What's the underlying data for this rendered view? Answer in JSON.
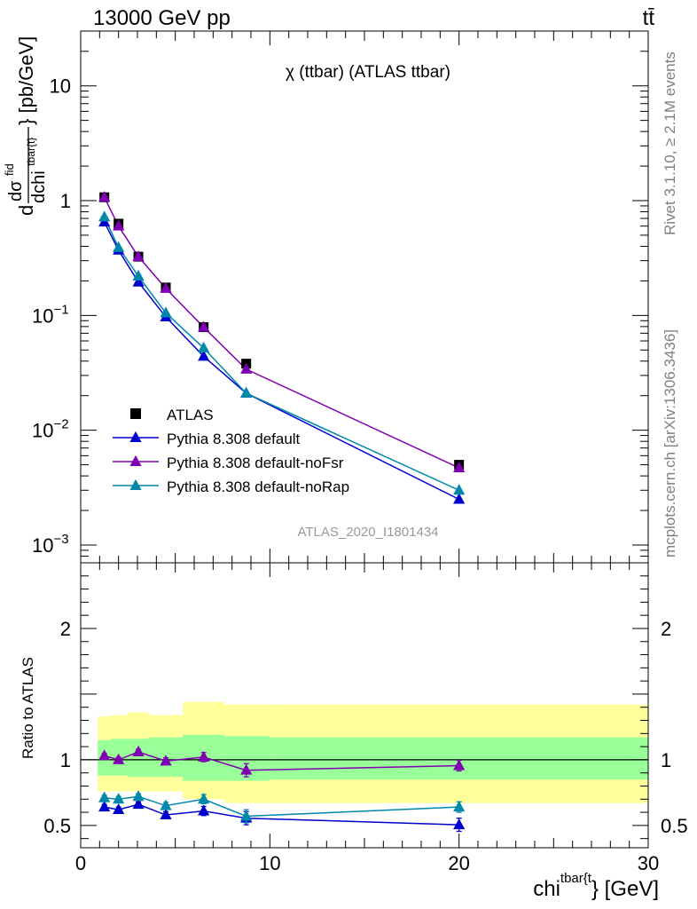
{
  "header": {
    "energy_label": "13000 GeV pp",
    "process_label": "tt̄"
  },
  "side_text": {
    "rivet": "Rivet 3.1.10, ≥ 2.1M events",
    "mcplots": "mcplots.cern.ch [arXiv:1306.3436]"
  },
  "chart_data": [
    {
      "type": "scatter",
      "title": "χ (ttbar) (ATLAS ttbar)",
      "watermark": "ATLAS_2020_I1801434",
      "ylabel": {
        "main": "d",
        "num": "dσ",
        "num_sup": "fid",
        "den": "dchi",
        "den_sup": "tbar{t}",
        "unit": "} [pb/GeV]"
      },
      "yscale": "log",
      "ylim": [
        0.0007,
        30
      ],
      "xlim": [
        0,
        30
      ],
      "yticks": [
        {
          "value": 10,
          "label": "10"
        },
        {
          "value": 1,
          "label": "1"
        },
        {
          "value": 0.1,
          "label": "10",
          "sup": "−1"
        },
        {
          "value": 0.01,
          "label": "10",
          "sup": "−2"
        },
        {
          "value": 0.001,
          "label": "10",
          "sup": "−3"
        }
      ],
      "x": [
        1.25,
        2.0,
        3.05,
        4.5,
        6.5,
        8.75,
        20.0
      ],
      "legend_position": "bottom-left",
      "series": [
        {
          "name": "ATLAS",
          "marker": "square",
          "color": "#000000",
          "values": [
            1.07,
            0.63,
            0.325,
            0.175,
            0.079,
            0.038,
            0.005
          ]
        },
        {
          "name": "Pythia 8.308 default",
          "marker": "triangle",
          "color": "#0000cc",
          "values": [
            0.65,
            0.37,
            0.195,
            0.097,
            0.044,
            0.021,
            0.0025
          ]
        },
        {
          "name": "Pythia 8.308 default-noFsr",
          "marker": "triangle",
          "color": "#7f00b2",
          "values": [
            1.07,
            0.6,
            0.325,
            0.172,
            0.079,
            0.034,
            0.0047
          ]
        },
        {
          "name": "Pythia 8.308 default-noRap",
          "marker": "triangle",
          "color": "#0088aa",
          "values": [
            0.72,
            0.39,
            0.22,
            0.105,
            0.052,
            0.021,
            0.003
          ]
        }
      ]
    },
    {
      "type": "scatter",
      "ylabel": "Ratio to ATLAS",
      "xlabel": {
        "main": "chi",
        "sup": "tbar{t",
        "unit": "} [GeV]"
      },
      "xlim": [
        0,
        30
      ],
      "ylim": [
        0.33,
        2.5
      ],
      "yticks": [
        {
          "value": 2,
          "label": "2"
        },
        {
          "value": 1,
          "label": "1"
        },
        {
          "value": 0.5,
          "label": "0.5"
        }
      ],
      "xticks": [
        {
          "value": 0,
          "label": "0"
        },
        {
          "value": 10,
          "label": "10"
        },
        {
          "value": 20,
          "label": "20"
        },
        {
          "value": 30,
          "label": "30"
        }
      ],
      "reference_line": 1,
      "bins": [
        {
          "lo": 0.9,
          "hi": 1.6,
          "stat": [
            0.88,
            1.15
          ],
          "tot": [
            0.76,
            1.33
          ]
        },
        {
          "lo": 1.6,
          "hi": 2.5,
          "stat": [
            0.88,
            1.16
          ],
          "tot": [
            0.76,
            1.34
          ]
        },
        {
          "lo": 2.5,
          "hi": 3.6,
          "stat": [
            0.87,
            1.16
          ],
          "tot": [
            0.76,
            1.36
          ]
        },
        {
          "lo": 3.6,
          "hi": 5.4,
          "stat": [
            0.87,
            1.17
          ],
          "tot": [
            0.76,
            1.34
          ]
        },
        {
          "lo": 5.4,
          "hi": 7.6,
          "stat": [
            0.84,
            1.19
          ],
          "tot": [
            0.7,
            1.44
          ]
        },
        {
          "lo": 7.6,
          "hi": 10.0,
          "stat": [
            0.84,
            1.18
          ],
          "tot": [
            0.67,
            1.42
          ]
        },
        {
          "lo": 10.0,
          "hi": 30.0,
          "stat": [
            0.85,
            1.17
          ],
          "tot": [
            0.67,
            1.42
          ]
        }
      ],
      "series": [
        {
          "name": "Pythia 8.308 default",
          "color": "#0000cc",
          "values": [
            0.64,
            0.62,
            0.66,
            0.58,
            0.61,
            0.555,
            0.505
          ],
          "errors": [
            0.02,
            0.02,
            0.02,
            0.025,
            0.035,
            0.05,
            0.05
          ]
        },
        {
          "name": "Pythia 8.308 default-noFsr",
          "color": "#7f00b2",
          "values": [
            1.03,
            1.0,
            1.06,
            0.99,
            1.02,
            0.92,
            0.955
          ],
          "errors": [
            0.02,
            0.02,
            0.02,
            0.025,
            0.035,
            0.05,
            0.04
          ]
        },
        {
          "name": "Pythia 8.308 default-noRap",
          "color": "#0088aa",
          "values": [
            0.71,
            0.7,
            0.72,
            0.65,
            0.7,
            0.57,
            0.64
          ],
          "errors": [
            0.02,
            0.02,
            0.02,
            0.025,
            0.035,
            0.05,
            0.04
          ]
        }
      ]
    }
  ]
}
